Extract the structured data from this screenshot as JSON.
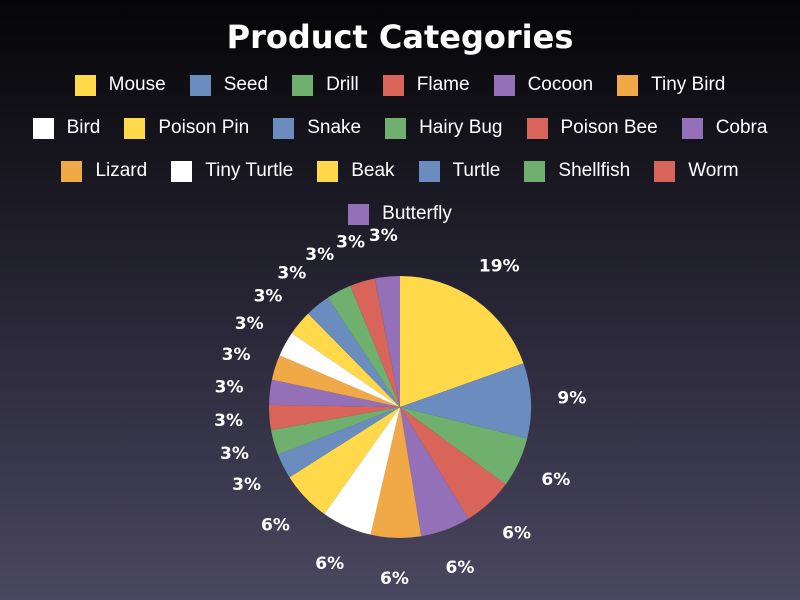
{
  "chart_data": {
    "type": "pie",
    "title": "Product Categories",
    "legend_position": "top",
    "categories": [
      "Mouse",
      "Seed",
      "Drill",
      "Flame",
      "Cocoon",
      "Tiny Bird",
      "Bird",
      "Poison Pin",
      "Snake",
      "Hairy Bug",
      "Poison Bee",
      "Cobra",
      "Lizard",
      "Tiny Turtle",
      "Beak",
      "Turtle",
      "Shellfish",
      "Worm",
      "Butterfly"
    ],
    "values": [
      19,
      9,
      6,
      6,
      6,
      6,
      6,
      6,
      3,
      3,
      3,
      3,
      3,
      3,
      3,
      3,
      3,
      3,
      3
    ],
    "labels": [
      "19%",
      "9%",
      "6%",
      "6%",
      "6%",
      "6%",
      "6%",
      "6%",
      "3%",
      "3%",
      "3%",
      "3%",
      "3%",
      "3%",
      "3%",
      "3%",
      "3%",
      "3%",
      "3%"
    ],
    "colors": [
      "#ffd94a",
      "#6b8cbf",
      "#6fb06f",
      "#d96459",
      "#9370b8",
      "#f0a946",
      "#ffffff",
      "#ffd94a",
      "#6b8cbf",
      "#6fb06f",
      "#d96459",
      "#9370b8",
      "#f0a946",
      "#ffffff",
      "#ffd94a",
      "#6b8cbf",
      "#6fb06f",
      "#d96459",
      "#9370b8"
    ]
  }
}
